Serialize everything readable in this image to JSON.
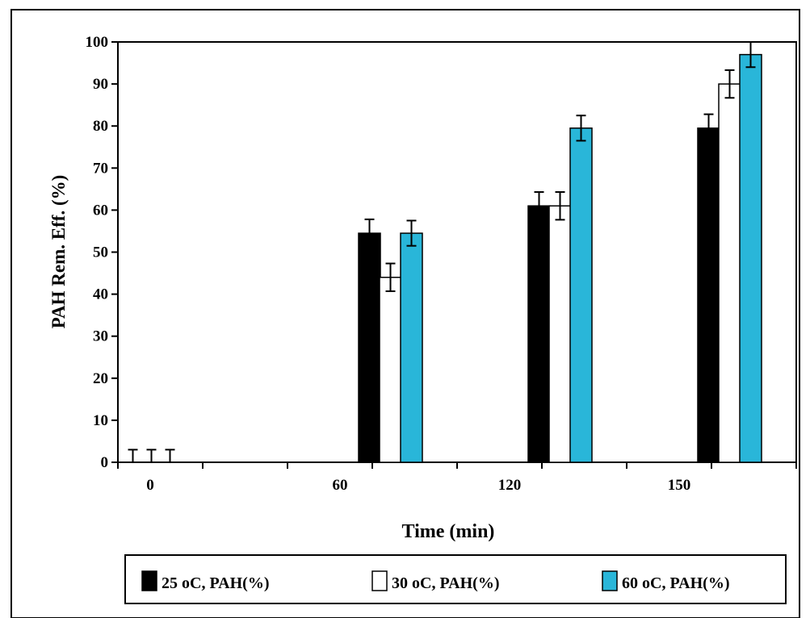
{
  "chart_data": {
    "type": "bar",
    "title": "",
    "xlabel": "Time (min)",
    "ylabel": "PAH Rem. Eff. (%)",
    "ylim": [
      0,
      100
    ],
    "yticks": [
      "0",
      "10",
      "20",
      "30",
      "40",
      "50",
      "60",
      "70",
      "80",
      "90",
      "100"
    ],
    "categories": [
      "0",
      "60",
      "120",
      "150"
    ],
    "series": [
      {
        "name": "25 oC, PAH(%)",
        "values": [
          0,
          54.5,
          61,
          79.5
        ],
        "errors": [
          3,
          3.3,
          3.3,
          3.3
        ],
        "color": "#000000"
      },
      {
        "name": "30 oC, PAH(%)",
        "values": [
          0,
          44,
          61,
          90
        ],
        "errors": [
          3,
          3.3,
          3.3,
          3.3
        ],
        "color": "#ffffff"
      },
      {
        "name": "60 oC, PAH(%)",
        "values": [
          0,
          54.5,
          79.5,
          97
        ],
        "errors": [
          3,
          3,
          3,
          3
        ],
        "color": "#29b6d9"
      }
    ],
    "grid": false,
    "legend_position": "bottom"
  }
}
